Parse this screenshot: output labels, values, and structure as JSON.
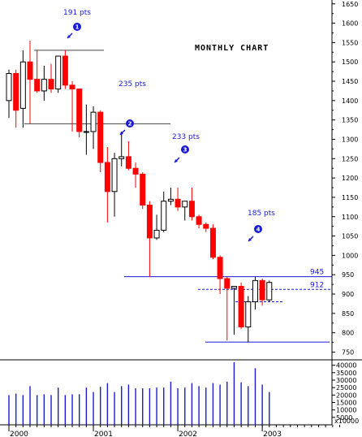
{
  "title": "MONTHLY CHART",
  "colors": {
    "up": "#ffffff",
    "down": "#ff0000",
    "outline": "#000000",
    "annotation": "#1a1ad6",
    "volume": "#1a1ad6"
  },
  "chart_data": [
    {
      "type": "candlestick",
      "title": "MONTHLY CHART",
      "ylim": [
        730,
        1660
      ],
      "yticks": [
        750,
        800,
        850,
        900,
        950,
        1000,
        1050,
        1100,
        1150,
        1200,
        1250,
        1300,
        1350,
        1400,
        1450,
        1500,
        1550,
        1600,
        1650
      ],
      "xticks": [
        "2000",
        "2001",
        "2002",
        "2003"
      ],
      "ohlc": [
        {
          "o": 1400,
          "h": 1480,
          "l": 1355,
          "c": 1470
        },
        {
          "o": 1470,
          "h": 1480,
          "l": 1330,
          "c": 1375
        },
        {
          "o": 1380,
          "h": 1530,
          "l": 1330,
          "c": 1500
        },
        {
          "o": 1500,
          "h": 1555,
          "l": 1340,
          "c": 1455
        },
        {
          "o": 1455,
          "h": 1530,
          "l": 1420,
          "c": 1425
        },
        {
          "o": 1425,
          "h": 1490,
          "l": 1400,
          "c": 1455
        },
        {
          "o": 1455,
          "h": 1495,
          "l": 1420,
          "c": 1430
        },
        {
          "o": 1430,
          "h": 1515,
          "l": 1420,
          "c": 1515
        },
        {
          "o": 1515,
          "h": 1530,
          "l": 1430,
          "c": 1440
        },
        {
          "o": 1440,
          "h": 1450,
          "l": 1320,
          "c": 1430
        },
        {
          "o": 1430,
          "h": 1430,
          "l": 1305,
          "c": 1320
        },
        {
          "o": 1320,
          "h": 1390,
          "l": 1260,
          "c": 1320
        },
        {
          "o": 1320,
          "h": 1385,
          "l": 1275,
          "c": 1370
        },
        {
          "o": 1370,
          "h": 1375,
          "l": 1215,
          "c": 1240
        },
        {
          "o": 1240,
          "h": 1280,
          "l": 1085,
          "c": 1165
        },
        {
          "o": 1165,
          "h": 1265,
          "l": 1100,
          "c": 1250
        },
        {
          "o": 1250,
          "h": 1320,
          "l": 1230,
          "c": 1255
        },
        {
          "o": 1255,
          "h": 1295,
          "l": 1220,
          "c": 1225
        },
        {
          "o": 1225,
          "h": 1240,
          "l": 1175,
          "c": 1210
        },
        {
          "o": 1210,
          "h": 1215,
          "l": 1120,
          "c": 1130
        },
        {
          "o": 1130,
          "h": 1140,
          "l": 945,
          "c": 1045
        },
        {
          "o": 1045,
          "h": 1105,
          "l": 1040,
          "c": 1065
        },
        {
          "o": 1065,
          "h": 1165,
          "l": 1060,
          "c": 1140
        },
        {
          "o": 1140,
          "h": 1175,
          "l": 1130,
          "c": 1145
        },
        {
          "o": 1145,
          "h": 1175,
          "l": 1115,
          "c": 1125
        },
        {
          "o": 1125,
          "h": 1140,
          "l": 1090,
          "c": 1140
        },
        {
          "o": 1140,
          "h": 1175,
          "l": 1090,
          "c": 1100
        },
        {
          "o": 1100,
          "h": 1105,
          "l": 1070,
          "c": 1080
        },
        {
          "o": 1080,
          "h": 1085,
          "l": 1060,
          "c": 1070
        },
        {
          "o": 1070,
          "h": 1080,
          "l": 990,
          "c": 995
        },
        {
          "o": 995,
          "h": 1000,
          "l": 900,
          "c": 940
        },
        {
          "o": 940,
          "h": 945,
          "l": 780,
          "c": 915
        },
        {
          "o": 915,
          "h": 915,
          "l": 795,
          "c": 920
        },
        {
          "o": 920,
          "h": 930,
          "l": 810,
          "c": 815
        },
        {
          "o": 815,
          "h": 895,
          "l": 775,
          "c": 880
        },
        {
          "o": 880,
          "h": 945,
          "l": 860,
          "c": 935
        },
        {
          "o": 935,
          "h": 940,
          "l": 870,
          "c": 885
        },
        {
          "o": 885,
          "h": 935,
          "l": 880,
          "c": 930
        }
      ],
      "levels": [
        {
          "label": "945",
          "value": 945
        },
        {
          "label": "912",
          "value": 912
        },
        {
          "label": "",
          "value": 880
        },
        {
          "label": "",
          "value": 1340
        },
        {
          "label": "",
          "value": 1530
        },
        {
          "label": "",
          "value": 776
        }
      ],
      "annotations": [
        {
          "text": "191 pts",
          "marker": "1"
        },
        {
          "text": "235 pts",
          "marker": "2"
        },
        {
          "text": "233 pts",
          "marker": "3"
        },
        {
          "text": "185 pts",
          "marker": "4"
        }
      ]
    },
    {
      "type": "bar",
      "ylim": [
        0,
        42000
      ],
      "yticks": [
        "40000",
        "35000",
        "30000",
        "25000",
        "20000",
        "15000",
        "10000",
        "5000"
      ],
      "ytick_bottom": "x10000",
      "values": [
        20000,
        21000,
        20000,
        26000,
        20000,
        20500,
        20000,
        25000,
        20000,
        20500,
        20500,
        25000,
        22000,
        25500,
        28000,
        22000,
        26000,
        27000,
        24500,
        24500,
        24500,
        25000,
        25000,
        29000,
        24500,
        25000,
        28000,
        26000,
        25000,
        28000,
        27000,
        29000,
        42000,
        28500,
        26000,
        38000,
        27000,
        22000
      ]
    }
  ]
}
